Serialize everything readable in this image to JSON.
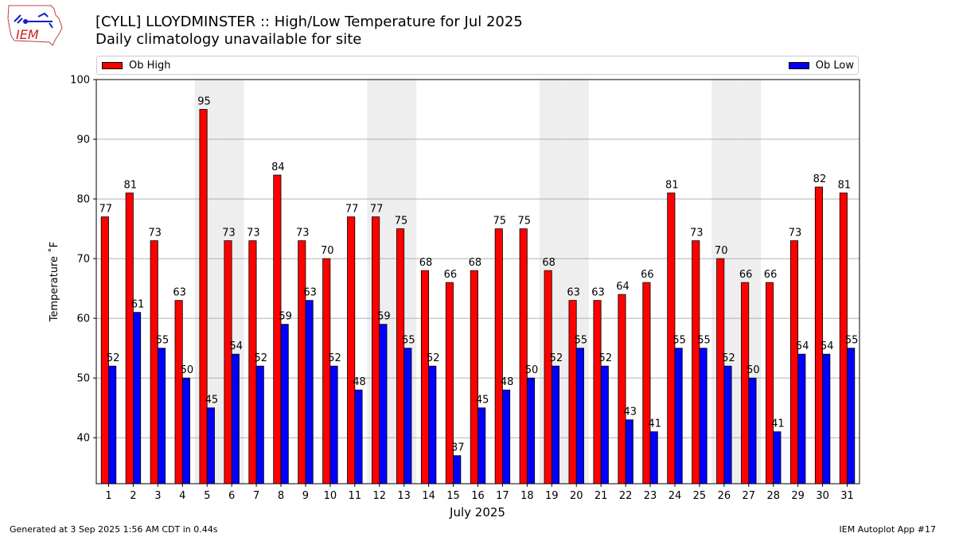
{
  "header": {
    "title_line1": "[CYLL] LLOYDMINSTER :: High/Low Temperature for Jul 2025",
    "title_line2": "Daily climatology unavailable for site",
    "logo_text": "IEM"
  },
  "footer": {
    "generated": "Generated at 3 Sep 2025 1:56 AM CDT in 0.44s",
    "app": "IEM Autoplot App #17"
  },
  "colors": {
    "high": "#ff0000",
    "low": "#0000ff",
    "weekend_shade": "#eeeeee",
    "grid": "#b0b0b0"
  },
  "chart_data": {
    "type": "bar",
    "xlabel": "July 2025",
    "ylabel": "Temperature ˚F",
    "ylim": [
      32.3,
      100
    ],
    "yticks": [
      40,
      50,
      60,
      70,
      80,
      90,
      100
    ],
    "grid": "horizontal",
    "legend": "top",
    "categories": [
      "1",
      "2",
      "3",
      "4",
      "5",
      "6",
      "7",
      "8",
      "9",
      "10",
      "11",
      "12",
      "13",
      "14",
      "15",
      "16",
      "17",
      "18",
      "19",
      "20",
      "21",
      "22",
      "23",
      "24",
      "25",
      "26",
      "27",
      "28",
      "29",
      "30",
      "31"
    ],
    "shaded_days": [
      5,
      6,
      12,
      13,
      19,
      20,
      26,
      27
    ],
    "series": [
      {
        "name": "Ob High",
        "color": "#ff0000",
        "values": [
          77,
          81,
          73,
          63,
          95,
          73,
          73,
          84,
          73,
          70,
          77,
          77,
          75,
          68,
          66,
          68,
          75,
          75,
          68,
          63,
          63,
          64,
          66,
          81,
          73,
          70,
          66,
          66,
          73,
          82,
          81
        ]
      },
      {
        "name": "Ob Low",
        "color": "#0000ff",
        "values": [
          52,
          61,
          55,
          50,
          45,
          54,
          52,
          59,
          63,
          52,
          48,
          59,
          55,
          52,
          37,
          45,
          48,
          50,
          52,
          55,
          52,
          43,
          41,
          55,
          55,
          52,
          50,
          41,
          54,
          54,
          55
        ]
      }
    ]
  }
}
